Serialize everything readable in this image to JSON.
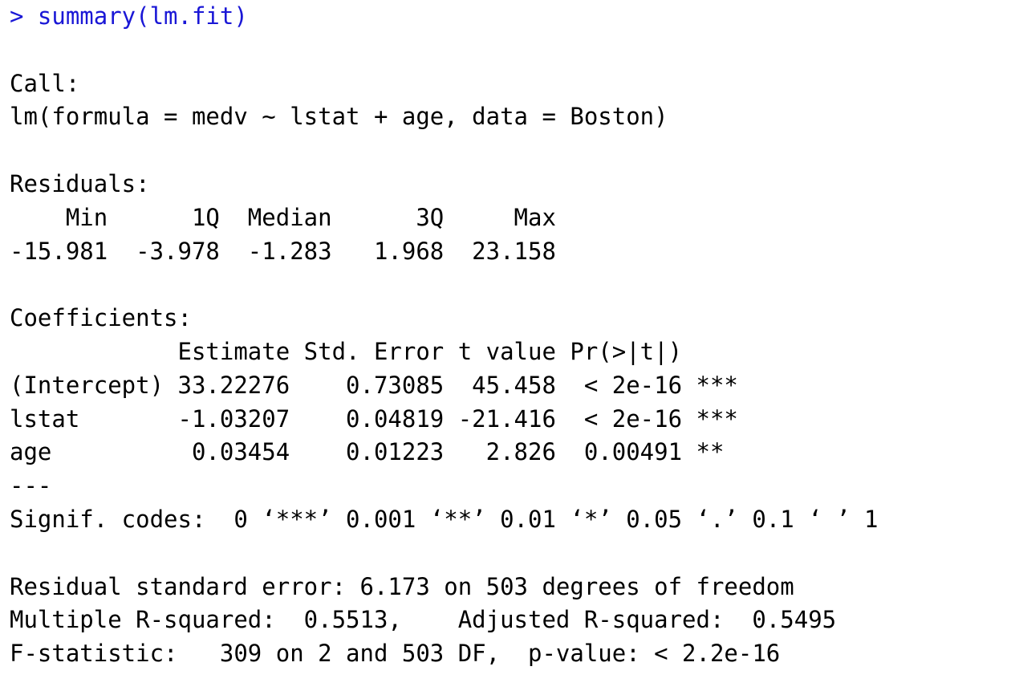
{
  "colors": {
    "command": "#1a17d6",
    "output": "#000000",
    "background": "#ffffff"
  },
  "console": {
    "command": "> summary(lm.fit)",
    "call_header": "Call:",
    "call_formula": "lm(formula = medv ~ lstat + age, data = Boston)",
    "residuals_header": "Residuals:",
    "residuals_labels": "    Min      1Q  Median      3Q     Max ",
    "residuals_values": "-15.981  -3.978  -1.283   1.968  23.158 ",
    "coefficients_header": "Coefficients:",
    "coef_table_header": "            Estimate Std. Error t value Pr(>|t|)    ",
    "coef_rows": [
      "(Intercept) 33.22276    0.73085  45.458  < 2e-16 ***",
      "lstat       -1.03207    0.04819 -21.416  < 2e-16 ***",
      "age          0.03454    0.01223   2.826  0.00491 ** "
    ],
    "separator": "---",
    "signif_codes": "Signif. codes:  0 ‘***’ 0.001 ‘**’ 0.01 ‘*’ 0.05 ‘.’ 0.1 ‘ ’ 1",
    "residual_se": "Residual standard error: 6.173 on 503 degrees of freedom",
    "r_squared": "Multiple R-squared:  0.5513,    Adjusted R-squared:  0.5495 ",
    "f_statistic": "F-statistic:   309 on 2 and 503 DF,  p-value: < 2.2e-16"
  }
}
